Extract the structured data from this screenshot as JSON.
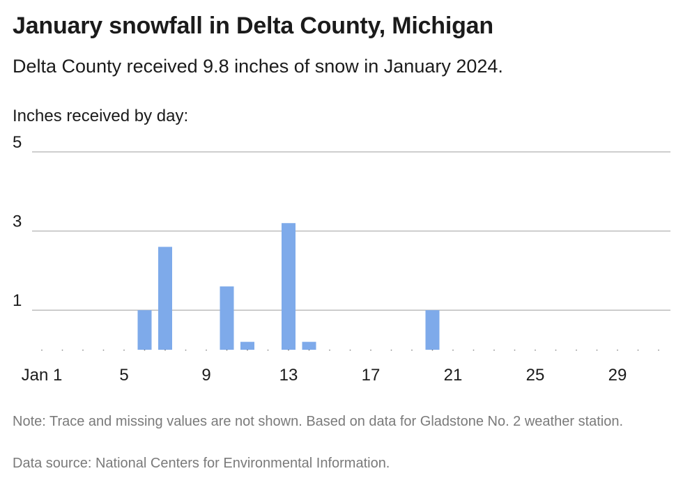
{
  "header": {
    "title": "January snowfall in Delta County, Michigan",
    "subtitle": "Delta County received 9.8 inches of snow in January 2024."
  },
  "chart_data": {
    "type": "bar",
    "ylabel": "Inches received by day:",
    "ylim": [
      0,
      5
    ],
    "yticks": [
      "1",
      "3",
      "5"
    ],
    "ytick_values": [
      1,
      3,
      5
    ],
    "bar_color": "#7eaaea",
    "grid": true,
    "x_tick_labels": [
      "Jan 1",
      "5",
      "9",
      "13",
      "17",
      "21",
      "25",
      "29"
    ],
    "x_tick_days": [
      1,
      5,
      9,
      13,
      17,
      21,
      25,
      29
    ],
    "days": [
      1,
      2,
      3,
      4,
      5,
      6,
      7,
      8,
      9,
      10,
      11,
      12,
      13,
      14,
      15,
      16,
      17,
      18,
      19,
      20,
      21,
      22,
      23,
      24,
      25,
      26,
      27,
      28,
      29,
      30,
      31
    ],
    "values": [
      0,
      0,
      0,
      0,
      0,
      1.0,
      2.6,
      0,
      0,
      1.6,
      0.2,
      0,
      3.2,
      0.2,
      0,
      0,
      0,
      0,
      0,
      1.0,
      0,
      0,
      0,
      0,
      0,
      0,
      0,
      0,
      0,
      0,
      0
    ]
  },
  "footer": {
    "note": "Note: Trace and missing values are not shown. Based on data for Gladstone No. 2 weather station.",
    "source": "Data source: National Centers for Environmental Information."
  }
}
